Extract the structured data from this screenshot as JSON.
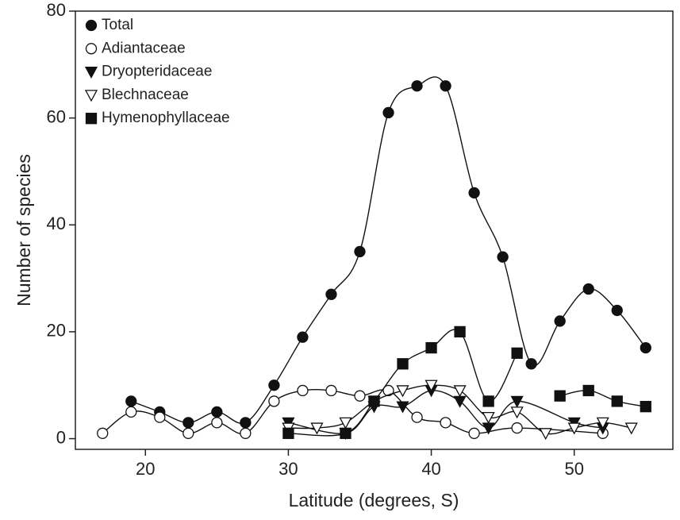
{
  "chart_data": {
    "type": "line",
    "xlabel": "Latitude (degrees, S)",
    "ylabel": "Number of species",
    "xlim": [
      15.1,
      56.9
    ],
    "ylim": [
      -2,
      80
    ],
    "xticks": [
      20,
      30,
      40,
      50
    ],
    "yticks": [
      0,
      20,
      40,
      60,
      80
    ],
    "legend": "upper left",
    "series": [
      {
        "name": "Total",
        "color": "#111111",
        "marker": "circle",
        "filled": true,
        "x": [
          19,
          21,
          23,
          25,
          27,
          29,
          31,
          33,
          35,
          37,
          39,
          41,
          43,
          45,
          47,
          49,
          51,
          53,
          55
        ],
        "values": [
          7,
          5,
          3,
          5,
          3,
          10,
          19,
          27,
          35,
          61,
          66,
          66,
          46,
          34,
          14,
          22,
          28,
          24,
          17
        ]
      },
      {
        "name": "Adiantaceae",
        "color": "#111111",
        "marker": "circle",
        "filled": false,
        "x": [
          17,
          19,
          21,
          23,
          25,
          27,
          29,
          31,
          33,
          35,
          37,
          39,
          41,
          43,
          46,
          52
        ],
        "values": [
          1,
          5,
          4,
          1,
          3,
          1,
          7,
          9,
          9,
          8,
          9,
          4,
          3,
          1,
          2,
          1
        ]
      },
      {
        "name": "Dryopteridaceae",
        "color": "#111111",
        "marker": "triangle-down",
        "filled": true,
        "x": [
          30,
          34,
          36,
          38,
          40,
          42,
          44,
          46,
          50,
          52
        ],
        "values": [
          3,
          1,
          6,
          6,
          9,
          7,
          2,
          7,
          3,
          2
        ]
      },
      {
        "name": "Blechnaceae",
        "color": "#111111",
        "marker": "triangle-down",
        "filled": false,
        "x": [
          30,
          32,
          34,
          36,
          38,
          40,
          42,
          44,
          46,
          48,
          50,
          52,
          54
        ],
        "values": [
          2,
          2,
          3,
          7,
          9,
          10,
          9,
          4,
          5,
          1,
          2,
          3,
          2
        ]
      },
      {
        "name": "Hymenophyllaceae",
        "color": "#111111",
        "marker": "square",
        "filled": true,
        "x": [
          30,
          34,
          36,
          38,
          40,
          42,
          44,
          46,
          47,
          49,
          51,
          53,
          55
        ],
        "values": [
          1,
          1,
          7,
          14,
          17,
          20,
          7,
          16,
          null,
          8,
          9,
          7,
          6
        ]
      }
    ]
  }
}
